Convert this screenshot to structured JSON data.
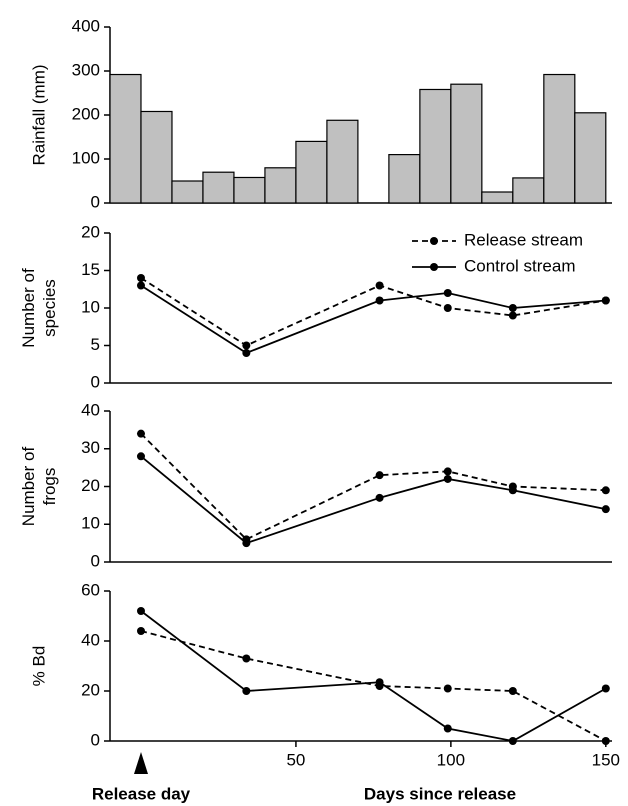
{
  "chart_data": [
    {
      "type": "histogram",
      "ylabel_lines": [
        "Rainfall (mm)"
      ],
      "color": "#c0c0c0",
      "bins": [
        -10,
        0,
        10,
        20,
        30,
        40,
        50,
        60,
        70,
        80,
        90,
        100,
        110,
        120,
        130,
        140,
        150
      ],
      "values": [
        292,
        208,
        50,
        70,
        58,
        80,
        140,
        188,
        0,
        110,
        258,
        270,
        25,
        57,
        292,
        205
      ],
      "xlim": [
        -10,
        152
      ],
      "ylim": [
        0,
        400
      ],
      "yticks": [
        0,
        100,
        200,
        300,
        400
      ]
    },
    {
      "type": "line",
      "ylabel_lines": [
        "Number of",
        "species"
      ],
      "legend": "top-right",
      "x": [
        0,
        34,
        77,
        99,
        120,
        150
      ],
      "series": [
        {
          "name": "Release stream",
          "color": "#000000",
          "dashed": true,
          "values": [
            14,
            5,
            13,
            10,
            9,
            11
          ]
        },
        {
          "name": "Control stream",
          "color": "#000000",
          "dashed": false,
          "values": [
            13,
            4,
            11,
            12,
            10,
            11
          ]
        }
      ],
      "xlim": [
        -10,
        152
      ],
      "ylim": [
        0,
        20
      ],
      "yticks": [
        0,
        5,
        10,
        15,
        20
      ]
    },
    {
      "type": "line",
      "ylabel_lines": [
        "Number of",
        "frogs"
      ],
      "x": [
        0,
        34,
        77,
        99,
        120,
        150
      ],
      "series": [
        {
          "color": "#000000",
          "dashed": true,
          "values": [
            34,
            6,
            23,
            24,
            20,
            19
          ]
        },
        {
          "color": "#000000",
          "dashed": false,
          "values": [
            28,
            5,
            17,
            22,
            19,
            14
          ]
        }
      ],
      "xlim": [
        -10,
        152
      ],
      "ylim": [
        0,
        40
      ],
      "yticks": [
        0,
        10,
        20,
        30,
        40
      ]
    },
    {
      "type": "line",
      "ylabel_lines": [
        "% Bd"
      ],
      "x": [
        0,
        34,
        77,
        99,
        120,
        150
      ],
      "series": [
        {
          "color": "#000000",
          "dashed": true,
          "values": [
            44,
            33,
            22,
            21,
            20,
            0
          ]
        },
        {
          "color": "#000000",
          "dashed": false,
          "values": [
            52,
            20,
            23.5,
            5,
            0,
            21
          ]
        }
      ],
      "xlim": [
        -10,
        152
      ],
      "ylim": [
        0,
        60
      ],
      "yticks": [
        0,
        20,
        40,
        60
      ],
      "xticks": [
        50,
        100,
        150
      ],
      "xlabel": "Days since release",
      "annotation": "Release day"
    }
  ]
}
